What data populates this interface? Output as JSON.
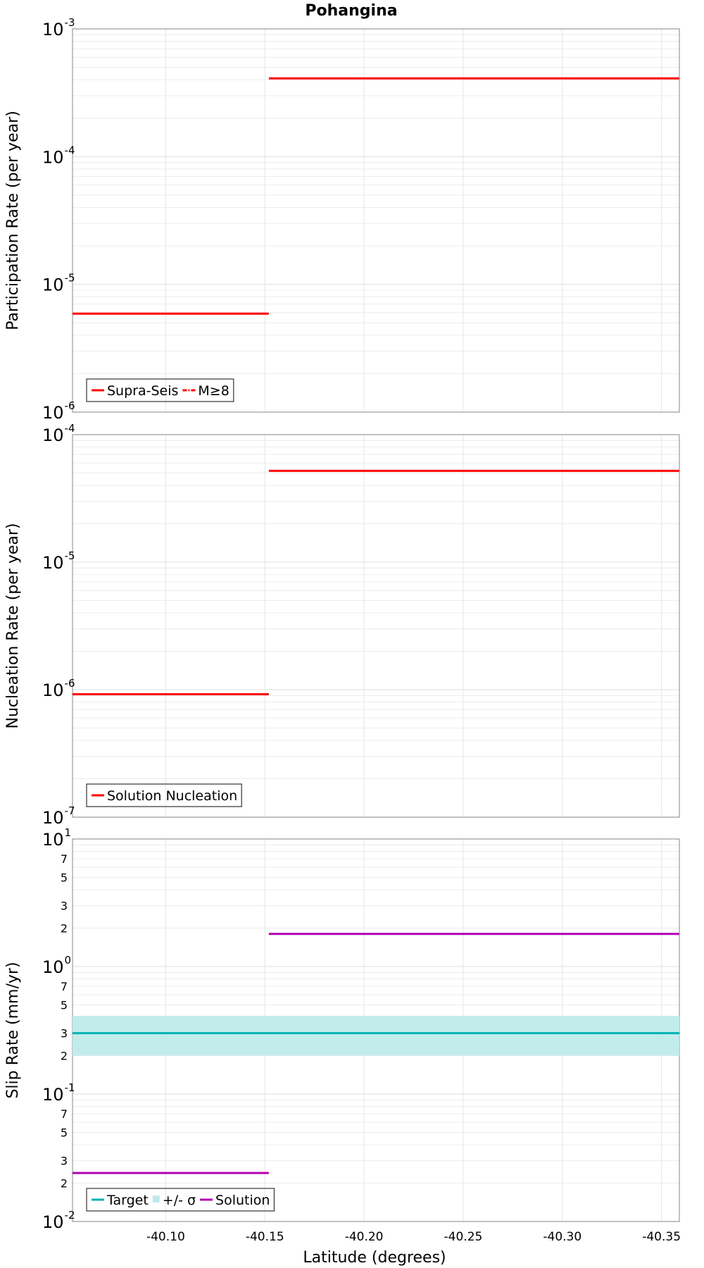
{
  "chart_data": [
    {
      "type": "line",
      "title": "Pohangina",
      "ylabel": "Participation Rate (per year)",
      "yscale": "log",
      "ylim": [
        1e-06,
        0.001
      ],
      "xlim": [
        -40.053,
        -40.359
      ],
      "grid": true,
      "legend_position": "bottom-left",
      "x_breaks": [
        -40.053,
        -40.152,
        -40.359
      ],
      "series": [
        {
          "name": "Supra-Seis",
          "color": "#ff0000",
          "style": "solid",
          "values": [
            5.9e-06,
            0.00041
          ]
        },
        {
          "name": "M≥8",
          "color": "#ff0000",
          "style": "dash-dot",
          "values": []
        }
      ]
    },
    {
      "type": "line",
      "title": "",
      "ylabel": "Nucleation Rate (per year)",
      "yscale": "log",
      "ylim": [
        1e-07,
        0.0001
      ],
      "xlim": [
        -40.053,
        -40.359
      ],
      "grid": true,
      "legend_position": "bottom-left",
      "x_breaks": [
        -40.053,
        -40.152,
        -40.359
      ],
      "series": [
        {
          "name": "Solution Nucleation",
          "color": "#ff0000",
          "style": "solid",
          "values": [
            9.2e-07,
            5.2e-05
          ]
        }
      ]
    },
    {
      "type": "line",
      "title": "",
      "ylabel": "Slip Rate (mm/yr)",
      "xlabel": "Latitude (degrees)",
      "yscale": "log",
      "ylim": [
        0.01,
        10
      ],
      "xlim": [
        -40.053,
        -40.359
      ],
      "grid": true,
      "legend_position": "bottom-left",
      "x_breaks": [
        -40.053,
        -40.152,
        -40.359
      ],
      "xticks": [
        -40.1,
        -40.15,
        -40.2,
        -40.25,
        -40.3,
        -40.35
      ],
      "xtick_labels": [
        "-40.10",
        "-40.15",
        "-40.20",
        "-40.25",
        "-40.30",
        "-40.35"
      ],
      "series": [
        {
          "name": "Target",
          "color": "#00b2b2",
          "style": "solid",
          "values": [
            0.3,
            0.3
          ]
        },
        {
          "name": "+/- σ",
          "color": "#bfebeb",
          "style": "band",
          "lower": [
            0.2,
            0.2
          ],
          "upper": [
            0.41,
            0.41
          ]
        },
        {
          "name": "Solution",
          "color": "#b200b2",
          "style": "solid",
          "values": [
            0.024,
            1.8
          ]
        }
      ]
    }
  ]
}
